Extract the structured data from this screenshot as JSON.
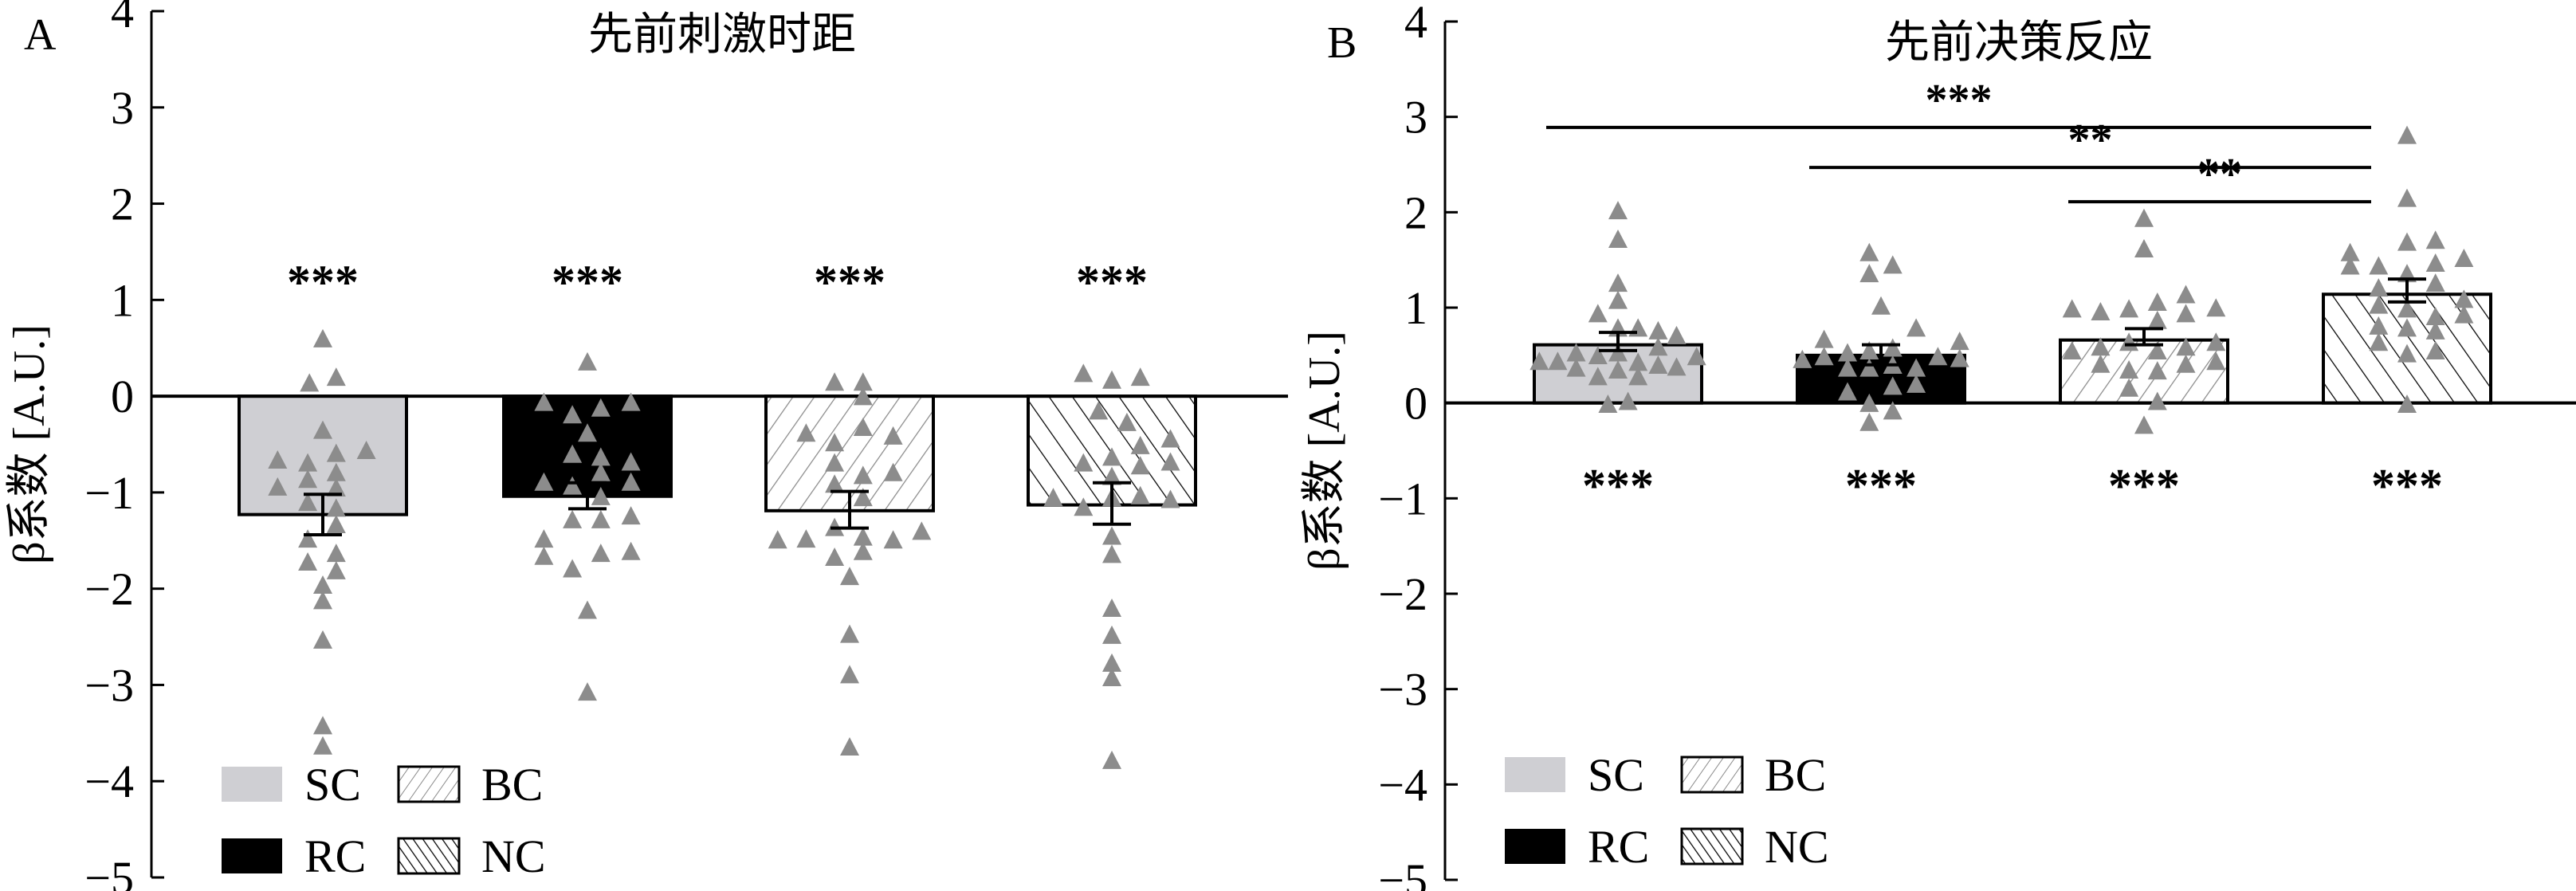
{
  "chart_data": [
    {
      "panel": "A",
      "type": "bar",
      "title": "先前刺激时距",
      "ylabel": "β系数 [A.U.]",
      "ylim": [
        -5,
        4
      ],
      "yticks": [
        "4",
        "3",
        "2",
        "1",
        "0",
        "−1",
        "−2",
        "−3",
        "−4",
        "−5"
      ],
      "ytick_values": [
        4,
        3,
        2,
        1,
        0,
        -1,
        -2,
        -3,
        -4,
        -5
      ],
      "categories": [
        "SC",
        "RC",
        "BC",
        "NC"
      ],
      "values": [
        -1.23,
        -1.04,
        -1.19,
        -1.13
      ],
      "error_bars": [
        [
          -1.02,
          -1.44
        ],
        [
          -0.9,
          -1.17
        ],
        [
          -0.99,
          -1.37
        ],
        [
          -0.9,
          -1.33
        ]
      ],
      "significance": [
        "***",
        "***",
        "***",
        "***"
      ],
      "significance_y": 1.2,
      "points": [
        {
          "y": [
            0.59,
            0.13,
            0.19,
            -0.36,
            -0.67,
            -0.7,
            -0.6,
            -0.57,
            -0.95,
            -0.87,
            -0.8,
            -1.11,
            -0.96,
            -1.17,
            -1.34,
            -1.49,
            -1.73,
            -1.64,
            -1.82,
            -1.97,
            -2.13,
            -2.54,
            -3.43,
            -3.64
          ],
          "jitter": [
            0,
            -0.08,
            0.08,
            0,
            -0.27,
            -0.09,
            0.08,
            0.26,
            -0.27,
            -0.09,
            0.08,
            -0.09,
            0.08,
            0.08,
            0.08,
            -0.09,
            -0.09,
            0.08,
            0.08,
            0,
            0,
            0,
            0,
            0
          ]
        },
        {
          "y": [
            0.35,
            -0.07,
            -0.2,
            -0.13,
            -0.07,
            -0.39,
            -0.61,
            -0.64,
            -0.69,
            -0.9,
            -0.94,
            -0.8,
            -0.9,
            -1.05,
            -1.29,
            -1.29,
            -1.25,
            -1.49,
            -1.67,
            -1.64,
            -1.62,
            -1.8,
            -2.23,
            -3.08
          ],
          "jitter": [
            0,
            -0.26,
            -0.09,
            0.08,
            0.26,
            0,
            -0.09,
            0.08,
            0.26,
            -0.26,
            -0.09,
            0.08,
            0.26,
            0.08,
            -0.09,
            0.08,
            0.26,
            -0.26,
            -0.26,
            0.08,
            0.26,
            -0.09,
            0,
            0
          ]
        },
        {
          "y": [
            0.14,
            0.14,
            -0.01,
            -0.39,
            -0.49,
            -0.33,
            -0.42,
            -0.7,
            -0.83,
            -0.8,
            -0.92,
            -1.06,
            -1.37,
            -1.5,
            -1.49,
            -1.47,
            -1.5,
            -1.41,
            -1.68,
            -1.62,
            -1.88,
            -2.48,
            -2.9,
            -3.65
          ],
          "jitter": [
            -0.09,
            0.08,
            0.08,
            -0.26,
            -0.09,
            0.08,
            0.26,
            -0.09,
            0.08,
            0.26,
            -0.09,
            0.08,
            -0.09,
            -0.43,
            -0.26,
            0.08,
            0.26,
            0.43,
            -0.09,
            0.08,
            0,
            0,
            0,
            0
          ]
        },
        {
          "y": [
            0.23,
            0.16,
            0.19,
            -0.16,
            -0.28,
            -0.7,
            -0.64,
            -0.52,
            -0.45,
            -0.73,
            -0.69,
            -0.84,
            -1.06,
            -1.16,
            -1.06,
            -1.04,
            -1.08,
            -1.46,
            -1.65,
            -2.21,
            -2.49,
            -2.78,
            -2.93,
            -3.79
          ],
          "jitter": [
            -0.17,
            0,
            0.17,
            -0.08,
            0.09,
            -0.17,
            0,
            0.17,
            0.35,
            0.17,
            0.35,
            0,
            -0.35,
            -0.17,
            0,
            0.17,
            0.35,
            0,
            0,
            0,
            0,
            0,
            0,
            0
          ]
        }
      ],
      "comparisons": [],
      "legend": [
        "SC",
        "BC",
        "RC",
        "NC"
      ],
      "legend_placement": "bottom-left"
    },
    {
      "panel": "B",
      "type": "bar",
      "title": "先前决策反应",
      "ylabel": "β系数 [A.U.]",
      "ylim": [
        -5,
        4
      ],
      "yticks": [
        "4",
        "3",
        "2",
        "1",
        "0",
        "−1",
        "−2",
        "−3",
        "−4",
        "−5"
      ],
      "ytick_values": [
        4,
        3,
        2,
        1,
        0,
        -1,
        -2,
        -3,
        -4,
        -5
      ],
      "categories": [
        "SC",
        "RC",
        "BC",
        "NC"
      ],
      "values": [
        0.61,
        0.5,
        0.66,
        1.14
      ],
      "error_bars": [
        [
          0.74,
          0.55
        ],
        [
          0.61,
          0.4
        ],
        [
          0.78,
          0.61
        ],
        [
          1.3,
          1.06
        ]
      ],
      "significance": [
        "***",
        "***",
        "***",
        "***"
      ],
      "significance_y": -0.85,
      "points": [
        {
          "y": [
            2.01,
            1.71,
            1.25,
            1.07,
            0.93,
            0.78,
            0.78,
            0.75,
            0.7,
            0.52,
            0.49,
            0.58,
            0.52,
            0.43,
            0.43,
            0.36,
            0.27,
            0.34,
            0.42,
            0.27,
            0.39,
            0.37,
            0.48,
            -0.02,
            0.01
          ],
          "jitter": [
            0,
            0,
            0,
            0,
            -0.12,
            0,
            0.12,
            0.24,
            0.35,
            -0.25,
            -0.12,
            0.24,
            0,
            -0.47,
            -0.36,
            -0.25,
            -0.12,
            0,
            0.12,
            0.12,
            0.24,
            0.35,
            0.47,
            -0.06,
            0.06
          ]
        },
        {
          "y": [
            1.57,
            1.35,
            1.44,
            1.01,
            0.78,
            0.66,
            0.45,
            0.48,
            0.52,
            0.54,
            0.57,
            0.48,
            0.64,
            0.46,
            0.36,
            0.36,
            0.39,
            0.36,
            0.11,
            0.17,
            0.19,
            -0.01,
            -0.09,
            -0.21
          ],
          "jitter": [
            -0.07,
            -0.07,
            0.07,
            0,
            0.21,
            -0.34,
            -0.47,
            -0.34,
            -0.2,
            -0.07,
            0.07,
            0.34,
            0.47,
            0.47,
            -0.2,
            -0.07,
            0.07,
            0.21,
            -0.2,
            0.07,
            0.21,
            -0.07,
            0.07,
            -0.07
          ]
        },
        {
          "y": [
            1.93,
            1.61,
            0.98,
            0.95,
            0.98,
            1.05,
            1.13,
            0.99,
            0.93,
            0.86,
            0.63,
            0.54,
            0.58,
            0.54,
            0.58,
            0.63,
            0.4,
            0.34,
            0.33,
            0.4,
            0.43,
            0.15,
            0.01,
            -0.24
          ],
          "jitter": [
            0,
            0,
            -0.43,
            -0.26,
            -0.09,
            0.08,
            0.25,
            0.43,
            0.25,
            0.08,
            -0.09,
            -0.43,
            -0.26,
            0.08,
            0.25,
            0.43,
            -0.26,
            -0.09,
            0.08,
            0.25,
            0.43,
            -0.09,
            0.08,
            0
          ]
        },
        {
          "y": [
            2.8,
            2.14,
            1.57,
            1.43,
            1.43,
            1.68,
            1.7,
            1.51,
            1.46,
            1.35,
            1.2,
            1.25,
            1.02,
            0.98,
            0.9,
            1.08,
            0.92,
            0.8,
            0.78,
            0.75,
            0.63,
            0.51,
            0.54,
            -0.02
          ],
          "jitter": [
            0,
            0,
            -0.34,
            -0.34,
            -0.17,
            0,
            0.17,
            0.34,
            0.17,
            0,
            -0.17,
            0.17,
            -0.17,
            0,
            0.17,
            0.34,
            0.34,
            -0.17,
            0,
            0.17,
            -0.17,
            0,
            0.17,
            0
          ]
        }
      ],
      "comparisons": [
        {
          "from": 0,
          "to": 3,
          "y": 2.89,
          "label": "***"
        },
        {
          "from": 1,
          "to": 3,
          "y": 2.47,
          "label": "**"
        },
        {
          "from": 2,
          "to": 3,
          "y": 2.11,
          "label": "**"
        }
      ],
      "legend": [
        "SC",
        "BC",
        "RC",
        "NC"
      ],
      "legend_placement": "bottom-left"
    }
  ],
  "colors": {
    "SC": "#cfcfd3",
    "RC": "#000000",
    "BC_line": "#8a8a8a",
    "NC_line": "#000000",
    "points": "#8c8c8c"
  }
}
